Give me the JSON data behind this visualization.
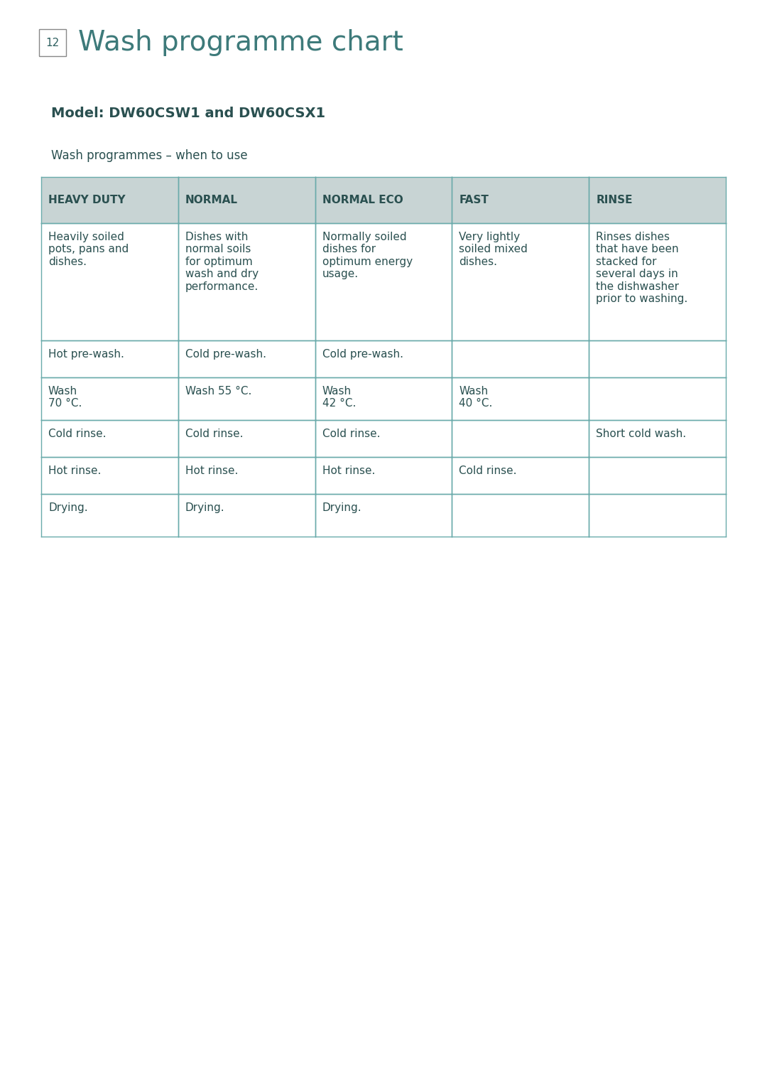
{
  "page_title": "Wash programme chart",
  "page_number": "12",
  "model_text": "Model: DW60CSW1 and DW60CSX1",
  "subtitle": "Wash programmes – when to use",
  "title_color": "#3d7a7a",
  "text_color": "#2e6060",
  "body_text_color": "#2a5050",
  "header_bg": "#c8d4d4",
  "table_border_color": "#6aabab",
  "columns": [
    "HEAVY DUTY",
    "NORMAL",
    "NORMAL ECO",
    "FAST",
    "RINSE"
  ],
  "rows": [
    [
      "Heavily soiled\npots, pans and\ndishes.",
      "Dishes with\nnormal soils\nfor optimum\nwash and dry\nperformance.",
      "Normally soiled\ndishes for\noptimum energy\nusage.",
      "Very lightly\nsoiled mixed\ndishes.",
      "Rinses dishes\nthat have been\nstacked for\nseveral days in\nthe dishwasher\nprior to washing."
    ],
    [
      "Hot pre-wash.",
      "Cold pre-wash.",
      "Cold pre-wash.",
      "",
      ""
    ],
    [
      "Wash\n70 °C.",
      "Wash 55 °C.",
      "Wash\n42 °C.",
      "Wash\n40 °C.",
      ""
    ],
    [
      "Cold rinse.",
      "Cold rinse.",
      "Cold rinse.",
      "",
      "Short cold wash."
    ],
    [
      "Hot rinse.",
      "Hot rinse.",
      "Hot rinse.",
      "Cold rinse.",
      ""
    ],
    [
      "Drying.",
      "Drying.",
      "Drying.",
      "",
      ""
    ]
  ],
  "background_color": "#ffffff",
  "page_num_border_color": "#888888",
  "font_size_title": 28,
  "font_size_model": 14,
  "font_size_subtitle": 12,
  "font_size_header": 11,
  "font_size_body": 11
}
